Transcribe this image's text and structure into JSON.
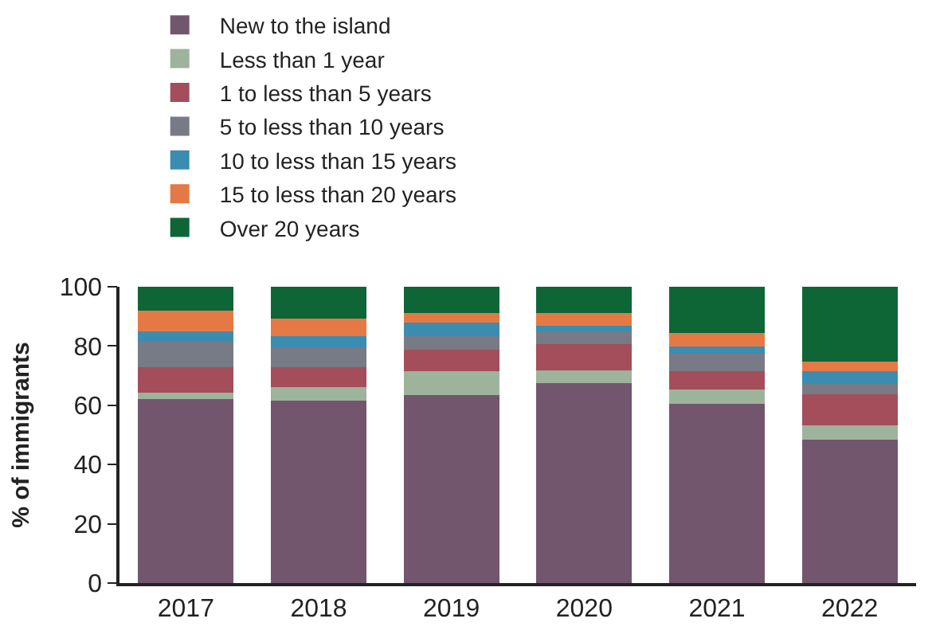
{
  "chart_data": {
    "type": "bar",
    "stacked": true,
    "ylabel": "% of immigrants",
    "categories": [
      "2017",
      "2018",
      "2019",
      "2020",
      "2021",
      "2022"
    ],
    "series": [
      {
        "name": "New to the island",
        "color": "#72566e",
        "values": [
          62,
          61.5,
          63.4,
          67.6,
          60.6,
          48.4
        ]
      },
      {
        "name": "Less than 1 year",
        "color": "#9db39b",
        "values": [
          2.3,
          4.7,
          8,
          4.2,
          4.7,
          4.7
        ]
      },
      {
        "name": "1 to less than 5 years",
        "color": "#a34e5a",
        "values": [
          8.5,
          6.6,
          7.5,
          8.8,
          6.1,
          10.7
        ]
      },
      {
        "name": "5 to less than 10 years",
        "color": "#787a86",
        "values": [
          8.6,
          6.7,
          4.5,
          4.4,
          6.1,
          3.3
        ]
      },
      {
        "name": "10 to less than 15 years",
        "color": "#3a8db0",
        "values": [
          3.6,
          3.8,
          4.6,
          1.9,
          2.3,
          4.3
        ]
      },
      {
        "name": "15 to less than 20 years",
        "color": "#e57945",
        "values": [
          7,
          5.9,
          3.1,
          4.2,
          4.7,
          3.2
        ]
      },
      {
        "name": "Over 20 years",
        "color": "#0e6637",
        "values": [
          8,
          10.8,
          8.9,
          8.9,
          15.5,
          25.4
        ]
      }
    ],
    "ylim": [
      0,
      100
    ],
    "yticks": [
      0,
      20,
      40,
      60,
      80,
      100
    ],
    "legend": "top"
  }
}
